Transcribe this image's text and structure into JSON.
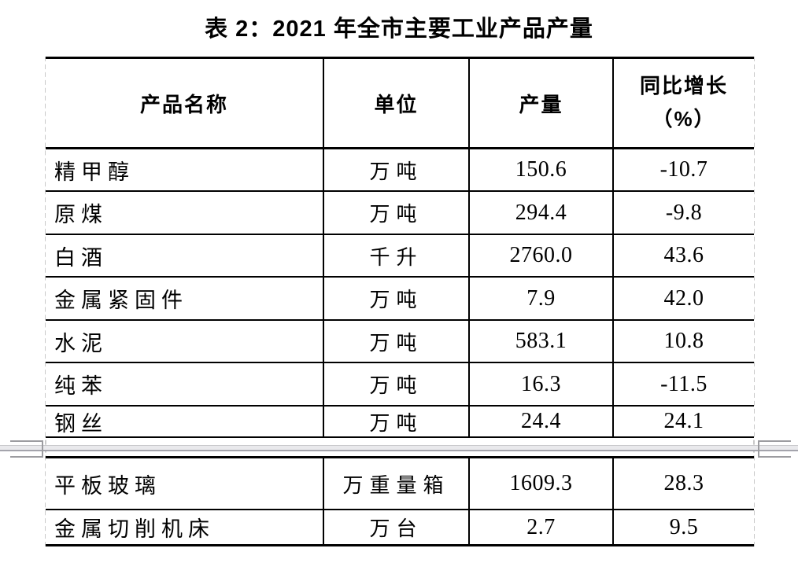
{
  "title": "表 2：2021 年全市主要工业产品产量",
  "table": {
    "columns": [
      {
        "label": "产品名称"
      },
      {
        "label": "单位"
      },
      {
        "label": "产量"
      },
      {
        "label": "同比增长（%）",
        "line1": "同比增长",
        "line2": "（%）"
      }
    ],
    "rows_page1": [
      {
        "name": "精甲醇",
        "unit": "万吨",
        "output": "150.6",
        "growth": "-10.7"
      },
      {
        "name": "原煤",
        "unit": "万吨",
        "output": "294.4",
        "growth": "-9.8"
      },
      {
        "name": "白酒",
        "unit": "千升",
        "output": "2760.0",
        "growth": "43.6"
      },
      {
        "name": "金属紧固件",
        "unit": "万吨",
        "output": "7.9",
        "growth": "42.0"
      },
      {
        "name": "水泥",
        "unit": "万吨",
        "output": "583.1",
        "growth": "10.8"
      },
      {
        "name": "纯苯",
        "unit": "万吨",
        "output": "16.3",
        "growth": "-11.5"
      },
      {
        "name": "钢丝",
        "unit": "万吨",
        "output": "24.4",
        "growth": "24.1"
      }
    ],
    "rows_page2": [
      {
        "name": "平板玻璃",
        "unit": "万重量箱",
        "output": "1609.3",
        "growth": "28.3"
      },
      {
        "name": "金属切削机床",
        "unit": "万台",
        "output": "2.7",
        "growth": "9.5"
      }
    ]
  },
  "colors": {
    "table_border": "#000000",
    "outer_gridline_dashed": "#c9c9c9",
    "page_break_fill": "#e9e9ec",
    "page_break_line": "#a4a4ac",
    "text": "#000000"
  }
}
